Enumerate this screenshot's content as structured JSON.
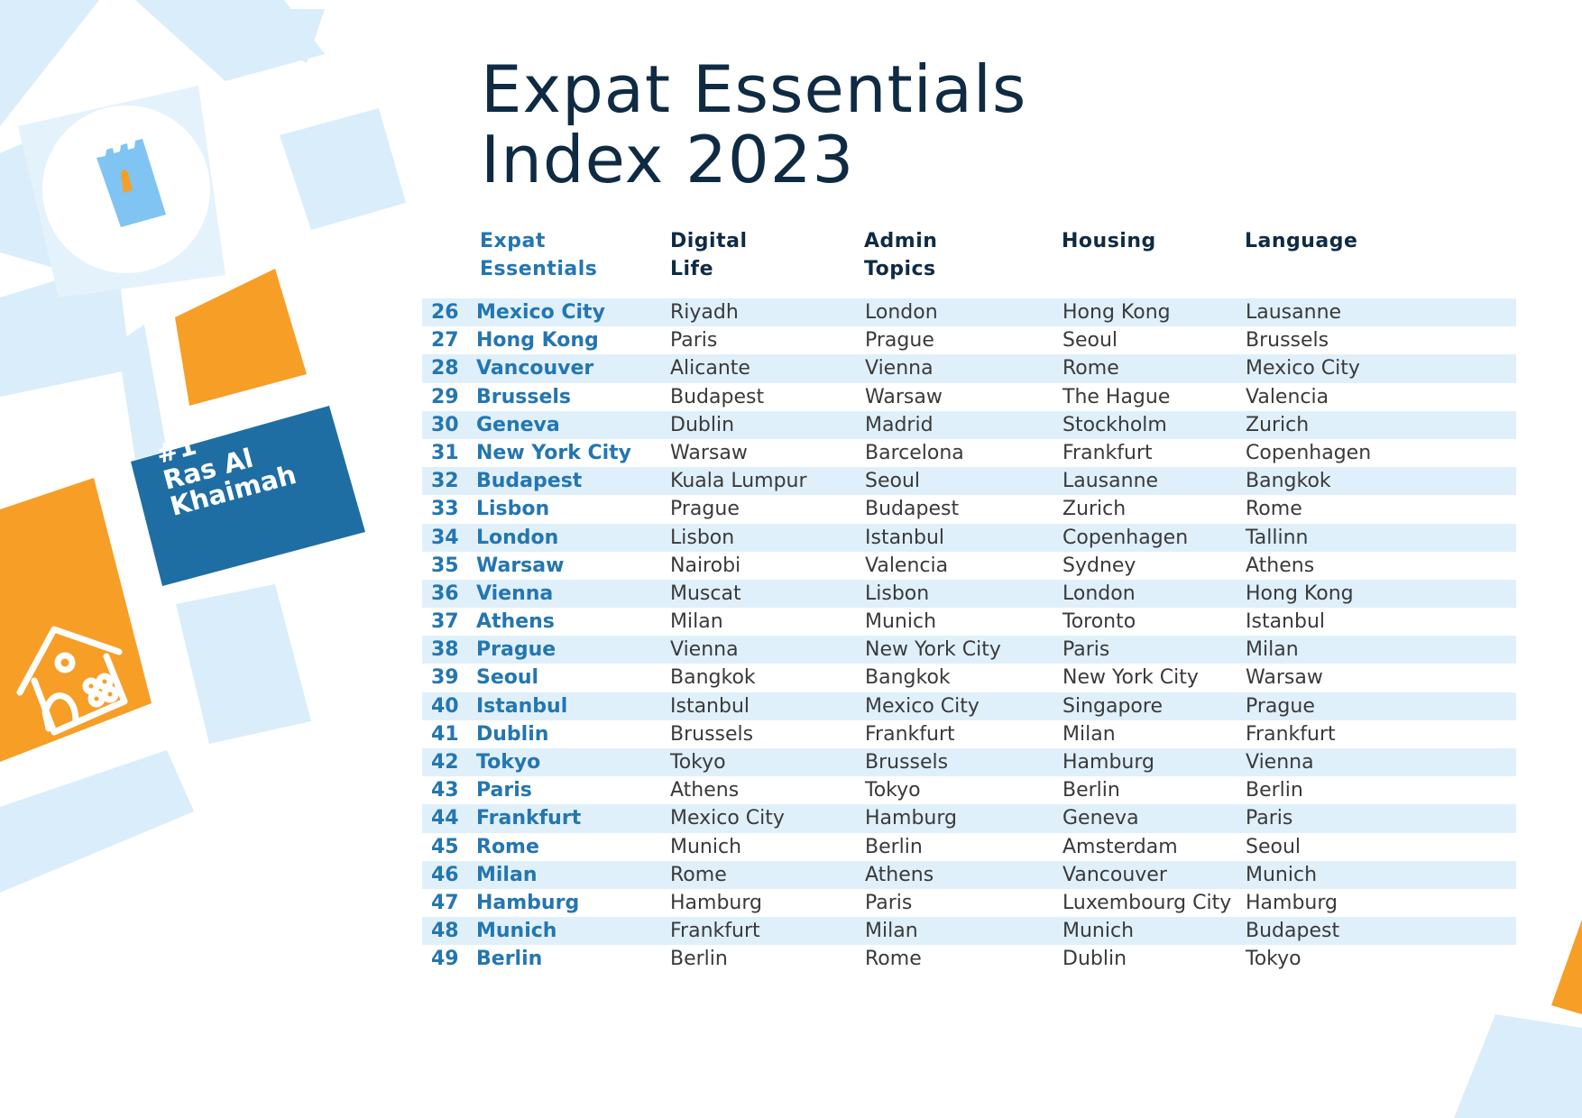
{
  "title_lines": [
    "Expat Essentials",
    "Index 2023"
  ],
  "badge_lines": [
    "#1",
    "Ras Al",
    "Khaimah"
  ],
  "headers": [
    {
      "lines": [
        "Expat",
        "Essentials"
      ]
    },
    {
      "lines": [
        "Digital",
        "Life"
      ]
    },
    {
      "lines": [
        "Admin",
        "Topics"
      ]
    },
    {
      "lines": [
        "Housing"
      ]
    },
    {
      "lines": [
        "Language"
      ]
    }
  ],
  "rows": [
    {
      "rank": "26",
      "city": "Mexico City",
      "digital": "Riyadh",
      "admin": "London",
      "housing": "Hong Kong",
      "language": "Lausanne"
    },
    {
      "rank": "27",
      "city": "Hong Kong",
      "digital": "Paris",
      "admin": "Prague",
      "housing": "Seoul",
      "language": "Brussels"
    },
    {
      "rank": "28",
      "city": "Vancouver",
      "digital": "Alicante",
      "admin": "Vienna",
      "housing": "Rome",
      "language": "Mexico City"
    },
    {
      "rank": "29",
      "city": "Brussels",
      "digital": "Budapest",
      "admin": "Warsaw",
      "housing": "The Hague",
      "language": "Valencia"
    },
    {
      "rank": "30",
      "city": "Geneva",
      "digital": "Dublin",
      "admin": "Madrid",
      "housing": "Stockholm",
      "language": "Zurich"
    },
    {
      "rank": "31",
      "city": "New York City",
      "digital": "Warsaw",
      "admin": "Barcelona",
      "housing": "Frankfurt",
      "language": "Copenhagen"
    },
    {
      "rank": "32",
      "city": "Budapest",
      "digital": "Kuala Lumpur",
      "admin": "Seoul",
      "housing": "Lausanne",
      "language": "Bangkok"
    },
    {
      "rank": "33",
      "city": "Lisbon",
      "digital": "Prague",
      "admin": "Budapest",
      "housing": "Zurich",
      "language": "Rome"
    },
    {
      "rank": "34",
      "city": "London",
      "digital": "Lisbon",
      "admin": "Istanbul",
      "housing": "Copenhagen",
      "language": "Tallinn"
    },
    {
      "rank": "35",
      "city": "Warsaw",
      "digital": "Nairobi",
      "admin": "Valencia",
      "housing": "Sydney",
      "language": "Athens"
    },
    {
      "rank": "36",
      "city": "Vienna",
      "digital": "Muscat",
      "admin": "Lisbon",
      "housing": "London",
      "language": "Hong Kong"
    },
    {
      "rank": "37",
      "city": "Athens",
      "digital": "Milan",
      "admin": "Munich",
      "housing": "Toronto",
      "language": "Istanbul"
    },
    {
      "rank": "38",
      "city": "Prague",
      "digital": "Vienna",
      "admin": "New York City",
      "housing": "Paris",
      "language": "Milan"
    },
    {
      "rank": "39",
      "city": "Seoul",
      "digital": "Bangkok",
      "admin": "Bangkok",
      "housing": "New York City",
      "language": "Warsaw"
    },
    {
      "rank": "40",
      "city": "Istanbul",
      "digital": "Istanbul",
      "admin": "Mexico City",
      "housing": "Singapore",
      "language": "Prague"
    },
    {
      "rank": "41",
      "city": "Dublin",
      "digital": "Brussels",
      "admin": "Frankfurt",
      "housing": "Milan",
      "language": "Frankfurt"
    },
    {
      "rank": "42",
      "city": "Tokyo",
      "digital": "Tokyo",
      "admin": "Brussels",
      "housing": "Hamburg",
      "language": "Vienna"
    },
    {
      "rank": "43",
      "city": "Paris",
      "digital": "Athens",
      "admin": "Tokyo",
      "housing": "Berlin",
      "language": "Berlin"
    },
    {
      "rank": "44",
      "city": "Frankfurt",
      "digital": "Mexico City",
      "admin": "Hamburg",
      "housing": "Geneva",
      "language": "Paris"
    },
    {
      "rank": "45",
      "city": "Rome",
      "digital": "Munich",
      "admin": "Berlin",
      "housing": "Amsterdam",
      "language": "Seoul"
    },
    {
      "rank": "46",
      "city": "Milan",
      "digital": "Rome",
      "admin": "Athens",
      "housing": "Vancouver",
      "language": "Munich"
    },
    {
      "rank": "47",
      "city": "Hamburg",
      "digital": "Hamburg",
      "admin": "Paris",
      "housing": "Luxembourg City",
      "language": "Hamburg"
    },
    {
      "rank": "48",
      "city": "Munich",
      "digital": "Frankfurt",
      "admin": "Milan",
      "housing": "Munich",
      "language": "Budapest"
    },
    {
      "rank": "49",
      "city": "Berlin",
      "digital": "Berlin",
      "admin": "Rome",
      "housing": "Dublin",
      "language": "Tokyo"
    }
  ],
  "colors": {
    "accent_blue": "#2476b0",
    "navy": "#0f2b44",
    "row_shade": "#dff0fb",
    "orange": "#f79e27",
    "light_blue": "#d9edfb",
    "sky_blue": "#7fc4f3",
    "badge_blue": "#1f6ea3"
  },
  "icons": [
    "castle-icon",
    "house-icon"
  ]
}
